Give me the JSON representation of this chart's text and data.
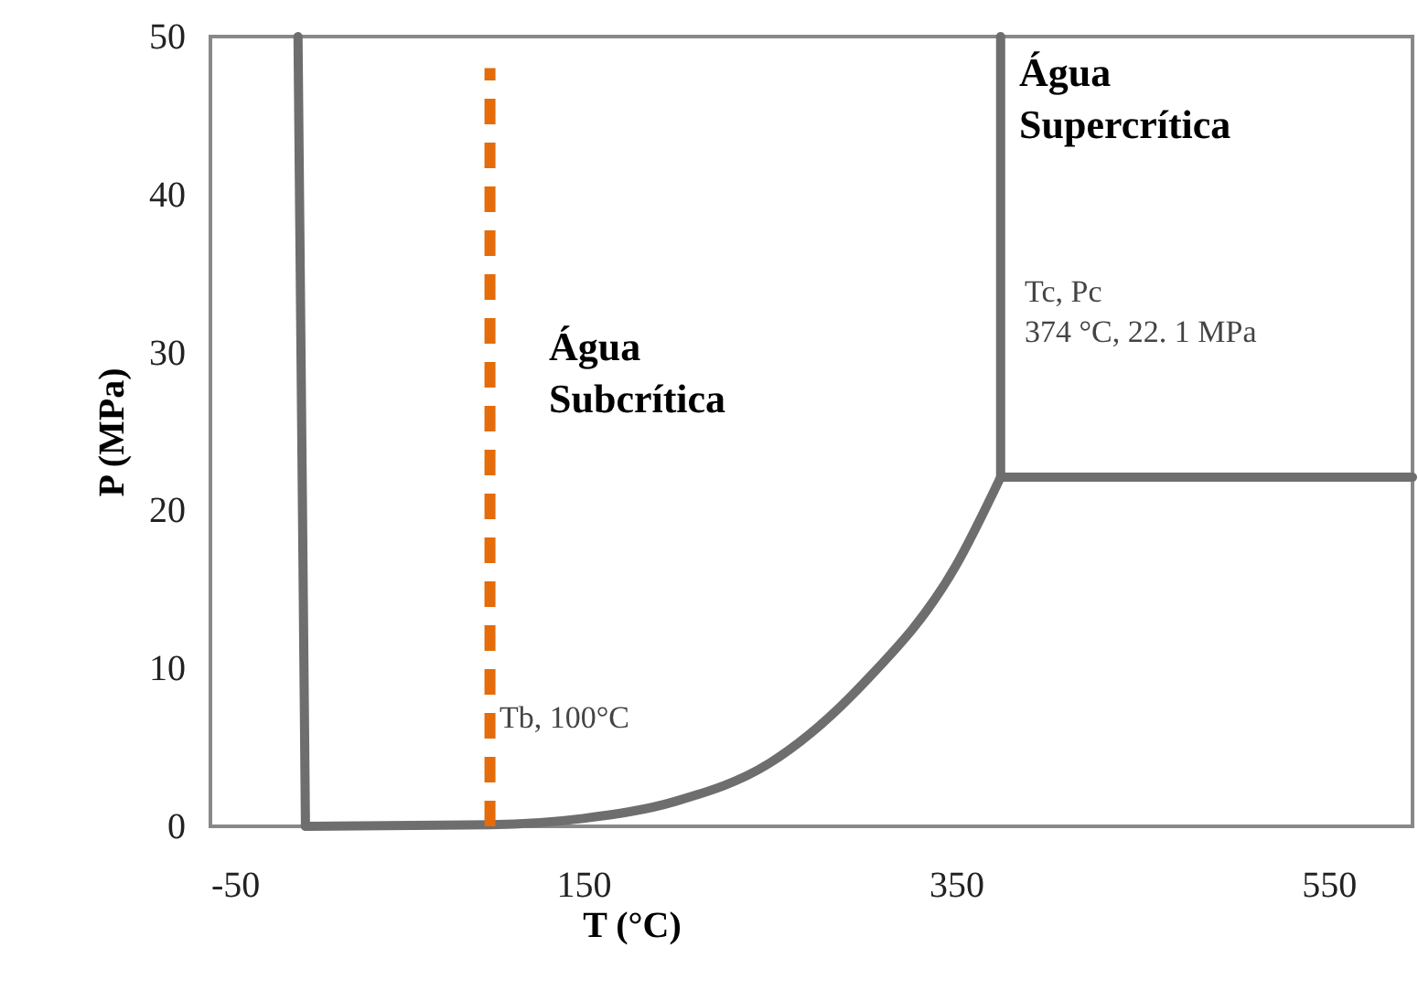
{
  "chart_data": {
    "type": "line",
    "xlabel": "T (°C)",
    "ylabel": "P (MPa)",
    "xlim": [
      -50,
      595
    ],
    "xticks": [
      -50,
      150,
      350,
      550
    ],
    "ylim": [
      0,
      50
    ],
    "yticks": [
      0,
      10,
      20,
      30,
      40,
      50
    ],
    "grid": false,
    "marker": "none",
    "series": [
      {
        "color": "#6e6e6e",
        "x": [
          -3,
          1
        ],
        "values": [
          50,
          0
        ]
      },
      {
        "color": "#6e6e6e",
        "x": [
          1,
          100,
          150,
          200,
          250,
          300,
          350,
          374
        ],
        "values": [
          0,
          0.1,
          0.5,
          1.6,
          4,
          9,
          16.5,
          22.1
        ]
      },
      {
        "color": "#6e6e6e",
        "x": [
          374,
          374
        ],
        "values": [
          22.1,
          50
        ]
      },
      {
        "color": "#6e6e6e",
        "x": [
          374,
          595
        ],
        "values": [
          22.1,
          22.1
        ]
      },
      {
        "color": "#e46c0a",
        "x": [
          100,
          100
        ],
        "values": [
          0,
          48
        ],
        "line_style": "dashed"
      }
    ],
    "annotations": [
      "Água\nSubcrítica",
      "Água\nSupercrítica",
      "Tc, Pc\n374 °C, 22. 1 MPa",
      "Tb, 100°C"
    ]
  }
}
